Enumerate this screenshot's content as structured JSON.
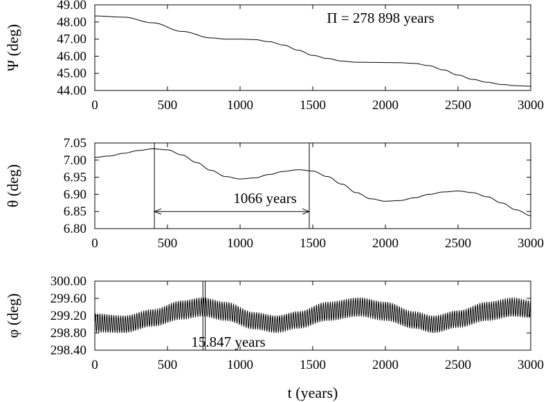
{
  "chart_data": [
    {
      "type": "line",
      "ylabel": "Ψ (deg)",
      "xlabel": "",
      "xlim": [
        0,
        3000
      ],
      "ylim": [
        44.0,
        49.0
      ],
      "xticks": [
        "0",
        "500",
        "1000",
        "1500",
        "2000",
        "2500",
        "3000"
      ],
      "yticks": [
        "44.00",
        "45.00",
        "46.00",
        "47.00",
        "48.00",
        "49.00"
      ],
      "annotation": "Π = 278 898 years",
      "series": [
        {
          "x": [
            0,
            200,
            400,
            600,
            800,
            900,
            1000,
            1100,
            1200,
            1300,
            1400,
            1500,
            1600,
            1700,
            1800,
            1900,
            2000,
            2100,
            2200,
            2300,
            2400,
            2500,
            2600,
            2700,
            2800,
            2900,
            3000
          ],
          "values": [
            48.35,
            48.28,
            47.95,
            47.45,
            47.07,
            47.0,
            47.0,
            46.97,
            46.85,
            46.65,
            46.35,
            46.05,
            45.87,
            45.72,
            45.65,
            45.64,
            45.63,
            45.62,
            45.58,
            45.45,
            45.2,
            44.9,
            44.65,
            44.48,
            44.35,
            44.28,
            44.25
          ]
        }
      ]
    },
    {
      "type": "line",
      "ylabel": "θ (deg)",
      "xlabel": "",
      "xlim": [
        0,
        3000
      ],
      "ylim": [
        6.8,
        7.05
      ],
      "xticks": [
        "0",
        "500",
        "1000",
        "1500",
        "2000",
        "2500",
        "3000"
      ],
      "yticks": [
        "6.80",
        "6.85",
        "6.90",
        "6.95",
        "7.00",
        "7.05"
      ],
      "annotation": "1066 years",
      "marker_x": [
        410,
        1476
      ],
      "arrow_y": 6.85,
      "series": [
        {
          "x": [
            0,
            100,
            200,
            300,
            400,
            500,
            600,
            700,
            800,
            900,
            1000,
            1100,
            1200,
            1300,
            1400,
            1500,
            1600,
            1700,
            1800,
            1900,
            2000,
            2100,
            2200,
            2300,
            2400,
            2500,
            2600,
            2700,
            2800,
            2900,
            3000
          ],
          "values": [
            7.008,
            7.012,
            7.02,
            7.028,
            7.033,
            7.03,
            7.015,
            6.993,
            6.97,
            6.952,
            6.945,
            6.948,
            6.958,
            6.967,
            6.972,
            6.968,
            6.952,
            6.93,
            6.905,
            6.887,
            6.88,
            6.882,
            6.89,
            6.9,
            6.907,
            6.91,
            6.905,
            6.893,
            6.875,
            6.855,
            6.838
          ]
        }
      ]
    },
    {
      "type": "line",
      "ylabel": "φ (deg)",
      "xlabel": "t (years)",
      "xlim": [
        0,
        3000
      ],
      "ylim": [
        298.4,
        300.0
      ],
      "xticks": [
        "0",
        "500",
        "1000",
        "1500",
        "2000",
        "2500",
        "3000"
      ],
      "yticks": [
        "298.40",
        "298.80",
        "299.20",
        "299.60",
        "300.00"
      ],
      "annotation": "15.847 years",
      "marker_x": [
        744,
        760
      ],
      "oscillation_period": 15.847,
      "envelope": {
        "x": [
          0,
          200,
          400,
          600,
          740,
          900,
          1100,
          1250,
          1400,
          1600,
          1820,
          2000,
          2200,
          2330,
          2500,
          2700,
          2880,
          3000
        ],
        "center": [
          299.03,
          299.0,
          299.15,
          299.33,
          299.4,
          299.3,
          299.08,
          299.0,
          299.1,
          299.3,
          299.4,
          299.3,
          299.1,
          299.0,
          299.12,
          299.3,
          299.4,
          299.35
        ],
        "amplitude": [
          0.22,
          0.2,
          0.2,
          0.22,
          0.22,
          0.22,
          0.2,
          0.2,
          0.2,
          0.22,
          0.22,
          0.22,
          0.2,
          0.2,
          0.2,
          0.22,
          0.22,
          0.2
        ]
      }
    }
  ]
}
